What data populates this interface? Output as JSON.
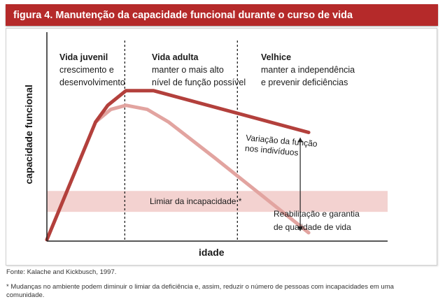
{
  "figure": {
    "title": "figura 4. Manutenção da capacidade funcional durante o curso de vida",
    "source": "Fonte: Kalache and Kickbusch, 1997.",
    "footnote": "* Mudanças no ambiente podem diminuir o limiar da deficiência e, assim, reduzir o número de pessoas com incapacidades em uma comunidade."
  },
  "colors": {
    "title_bar": "#b52a2a",
    "line_maintained": "#b3403c",
    "line_decline": "#e2a4a0",
    "threshold_band": "#f3d2d0"
  },
  "chart_data": {
    "type": "line",
    "xlabel": "idade",
    "ylabel": "capacidade funcional",
    "xlim": [
      0,
      100
    ],
    "ylim": [
      0,
      100
    ],
    "stages": [
      {
        "title": "Vida juvenil",
        "lines": [
          "crescimento e",
          "desenvolvimento"
        ]
      },
      {
        "title": "Vida adulta",
        "lines": [
          "manter o mais alto",
          "nível de função possível"
        ]
      },
      {
        "title": "Velhice",
        "lines": [
          "manter a independência",
          "e prevenir deficiências"
        ]
      }
    ],
    "stage_boundaries": [
      25.6,
      62.6
    ],
    "threshold": {
      "label": "Limiar da incapacidade *",
      "y_range": [
        14,
        24
      ]
    },
    "series": [
      {
        "x": [
          0,
          16,
          20,
          26,
          35,
          86
        ],
        "y": [
          -5,
          57,
          65,
          72,
          72,
          52
        ]
      },
      {
        "x": [
          16,
          21,
          26,
          33,
          40,
          55,
          86
        ],
        "y": [
          57,
          63,
          65,
          63,
          57,
          40,
          4
        ]
      }
    ],
    "annotations": {
      "variation": [
        "Variação da função",
        "nos indivíduos"
      ],
      "rehab": [
        "Reabilitação e garantia",
        "de qualidade de vida"
      ]
    }
  }
}
